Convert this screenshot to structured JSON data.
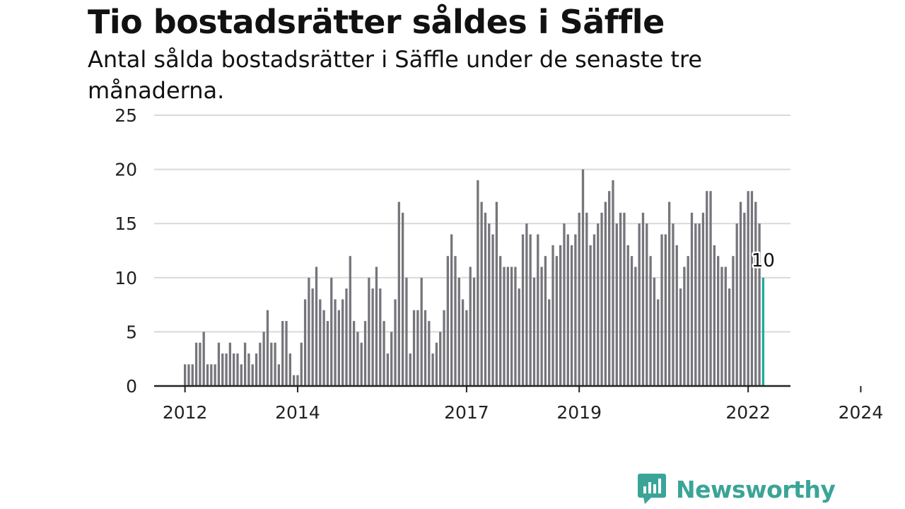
{
  "title": "Tio bostadsrätter såldes i Säffle",
  "subtitle": "Antal sålda bostadsrätter i Säffle under de senaste tre månaderna.",
  "brand": "Newsworthy",
  "colors": {
    "bar": "#75757b",
    "highlight": "#20a99b",
    "grid": "#d9d9d9",
    "axis": "#222222",
    "brand": "#3aa597"
  },
  "chart_data": {
    "type": "bar",
    "title": "Tio bostadsrätter såldes i Säffle",
    "subtitle": "Antal sålda bostadsrätter i Säffle under de senaste tre månaderna.",
    "ylim": [
      0,
      25
    ],
    "yticks": [
      0,
      5,
      10,
      15,
      20,
      25
    ],
    "xtick_labels": [
      "2012",
      "2014",
      "2017",
      "2019",
      "2022",
      "2024"
    ],
    "xtick_bar_index": [
      0,
      30,
      75,
      105,
      150,
      180
    ],
    "grid": true,
    "highlight_label": "10",
    "values": [
      2,
      2,
      2,
      4,
      4,
      5,
      2,
      2,
      2,
      4,
      3,
      3,
      4,
      3,
      3,
      2,
      4,
      3,
      2,
      3,
      4,
      5,
      7,
      4,
      4,
      2,
      6,
      6,
      3,
      1,
      1,
      4,
      8,
      10,
      9,
      11,
      8,
      7,
      6,
      10,
      8,
      7,
      8,
      9,
      12,
      6,
      5,
      4,
      6,
      10,
      9,
      11,
      9,
      6,
      3,
      5,
      8,
      17,
      16,
      10,
      3,
      7,
      7,
      10,
      7,
      6,
      3,
      4,
      5,
      7,
      12,
      14,
      12,
      10,
      8,
      7,
      11,
      10,
      19,
      17,
      16,
      15,
      14,
      17,
      12,
      11,
      11,
      11,
      11,
      9,
      14,
      15,
      14,
      10,
      14,
      11,
      12,
      8,
      13,
      12,
      13,
      15,
      14,
      13,
      14,
      16,
      20,
      16,
      13,
      14,
      15,
      16,
      17,
      18,
      19,
      15,
      16,
      16,
      13,
      12,
      11,
      15,
      16,
      15,
      12,
      10,
      8,
      14,
      14,
      17,
      15,
      13,
      9,
      11,
      12,
      16,
      15,
      15,
      16,
      18,
      18,
      13,
      12,
      11,
      11,
      9,
      12,
      15,
      17,
      16,
      18,
      18,
      17,
      15,
      10
    ],
    "highlight_index": 154
  }
}
